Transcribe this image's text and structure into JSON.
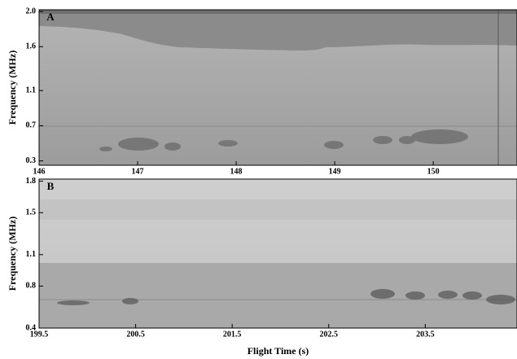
{
  "chart_data": [
    {
      "type": "spectrogram",
      "panel_label": "A",
      "y_label": "Frequency (MHz)",
      "xlim": [
        146,
        150.85
      ],
      "xticks": [
        146,
        147,
        148,
        149,
        150
      ],
      "ylim": [
        0.25,
        2.02
      ],
      "yticks": [
        0.3,
        0.7,
        1.1,
        1.6,
        {
          "value": 2,
          "label": "2.0"
        }
      ]
    },
    {
      "type": "spectrogram",
      "panel_label": "B",
      "y_label": "Frequency (MHz)",
      "x_label": "Flight Time (s)",
      "xlim": [
        199.5,
        204.45
      ],
      "xticks": [
        199.5,
        200.5,
        201.5,
        202.5,
        203.5
      ],
      "ylim": [
        0.4,
        1.82
      ],
      "yticks": [
        0.4,
        0.8,
        1.1,
        1.5,
        1.8
      ]
    }
  ]
}
